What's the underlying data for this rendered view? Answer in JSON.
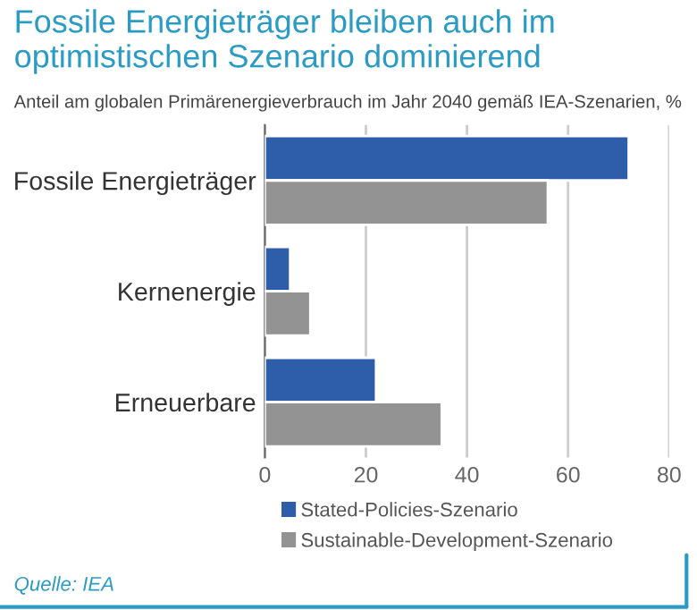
{
  "chart_data": {
    "type": "bar",
    "orientation": "horizontal",
    "title": "Fossile Energieträger bleiben auch im optimistischen Szenario dominierend",
    "subtitle": "Anteil am globalen Primärenergieverbrauch im Jahr 2040 gemäß IEA-Szenarien, %",
    "categories": [
      "Fossile Energieträger",
      "Kernenergie",
      "Erneuerbare"
    ],
    "series": [
      {
        "name": "Stated-Policies-Szenario",
        "color": "#2e5eaa",
        "values": [
          72,
          5,
          22
        ]
      },
      {
        "name": "Sustainable-Development-Szenario",
        "color": "#939393",
        "values": [
          56,
          9,
          35
        ]
      }
    ],
    "xlim": [
      0,
      80
    ],
    "xticks": [
      0,
      20,
      40,
      60,
      80
    ],
    "grid": "x",
    "legend": "bottom",
    "annotations": [
      "Quelle: IEA"
    ]
  }
}
